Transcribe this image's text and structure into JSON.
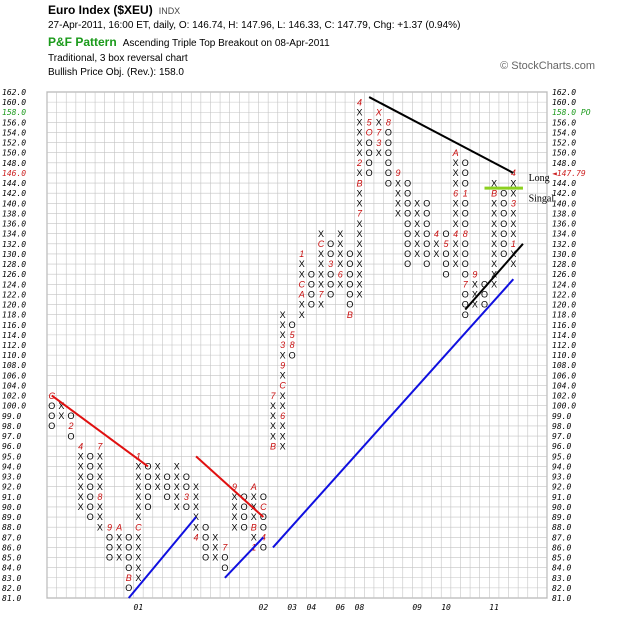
{
  "header": {
    "title": "Euro Index ($XEU)",
    "exchange": "INDX",
    "line1": "27-Apr-2011, 16:00 ET, daily, O: 146.74, H: 147.96, L: 146.33, C: 147.79, Chg: +1.37 (0.94%)",
    "pattern_label": "P&F Pattern",
    "pattern_text": "Ascending Triple Top Breakout on 08-Apr-2011",
    "line3": "Traditional, 3 box reversal chart",
    "line4": "Bullish Price Obj. (Rev.): 158.0",
    "watermark": "© StockCharts.com"
  },
  "chart_data": {
    "type": "point-and-figure",
    "box_size": 1,
    "reversal": 3,
    "ylim": [
      81,
      162
    ],
    "y_ticks": [
      81,
      82,
      83,
      84,
      85,
      86,
      87,
      88,
      89,
      90,
      91,
      92,
      93,
      94,
      95,
      96,
      97,
      98,
      99,
      100,
      102,
      104,
      106,
      108,
      110,
      112,
      114,
      116,
      118,
      120,
      122,
      124,
      126,
      128,
      130,
      132,
      134,
      136,
      138,
      140,
      142,
      144,
      146,
      148,
      150,
      152,
      154,
      156,
      158,
      160,
      162
    ],
    "y_tick_labels": [
      "81.0",
      "82.0",
      "83.0",
      "84.0",
      "85.0",
      "86.0",
      "87.0",
      "88.0",
      "89.0",
      "90.0",
      "91.0",
      "92.0",
      "93.0",
      "94.0",
      "95.0",
      "96.0",
      "97.0",
      "98.0",
      "99.0",
      "100.0",
      "102.0",
      "104.0",
      "106.0",
      "108.0",
      "110.0",
      "112.0",
      "114.0",
      "116.0",
      "118.0",
      "120.0",
      "122.0",
      "124.0",
      "126.0",
      "128.0",
      "130.0",
      "132.0",
      "134.0",
      "136.0",
      "138.0",
      "140.0",
      "142.0",
      "144.0",
      "146.0",
      "148.0",
      "150.0",
      "152.0",
      "154.0",
      "156.0",
      "158.0",
      "160.0",
      "162.0"
    ],
    "n_columns": 52,
    "x_labels": [
      {
        "column": 9,
        "text": "01"
      },
      {
        "column": 22,
        "text": "02"
      },
      {
        "column": 25,
        "text": "03"
      },
      {
        "column": 27,
        "text": "04"
      },
      {
        "column": 30,
        "text": "06"
      },
      {
        "column": 32,
        "text": "08"
      },
      {
        "column": 38,
        "text": "09"
      },
      {
        "column": 41,
        "text": "10"
      },
      {
        "column": 46,
        "text": "11"
      }
    ],
    "columns": [
      {
        "col": 0,
        "type": "O",
        "from": 102,
        "to": 98,
        "marks": {
          "106": "B",
          "102": "C"
        }
      },
      {
        "col": 1,
        "type": "X",
        "from": 99,
        "to": 100
      },
      {
        "col": 2,
        "type": "O",
        "from": 99,
        "to": 97,
        "marks": {
          "98": "2"
        }
      },
      {
        "col": 3,
        "type": "X",
        "from": 90,
        "to": 96,
        "marks": {
          "96": "4"
        }
      },
      {
        "col": 4,
        "type": "O",
        "from": 95,
        "to": 89,
        "marks": {
          "96": "6"
        }
      },
      {
        "col": 5,
        "type": "X",
        "from": 88,
        "to": 96,
        "marks": {
          "96": "7",
          "91": "8"
        }
      },
      {
        "col": 6,
        "type": "O",
        "from": 88,
        "to": 85,
        "marks": {
          "88": "9"
        }
      },
      {
        "col": 7,
        "type": "X",
        "from": 85,
        "to": 88,
        "marks": {
          "88": "A"
        }
      },
      {
        "col": 8,
        "type": "O",
        "from": 87,
        "to": 82,
        "marks": {
          "83": "B"
        }
      },
      {
        "col": 9,
        "type": "X",
        "from": 83,
        "to": 95,
        "marks": {
          "95": "1",
          "88": "C"
        }
      },
      {
        "col": 10,
        "type": "O",
        "from": 94,
        "to": 90
      },
      {
        "col": 11,
        "type": "X",
        "from": 92,
        "to": 94
      },
      {
        "col": 12,
        "type": "O",
        "from": 93,
        "to": 91
      },
      {
        "col": 13,
        "type": "X",
        "from": 90,
        "to": 94
      },
      {
        "col": 14,
        "type": "O",
        "from": 93,
        "to": 90,
        "marks": {
          "91": "3"
        }
      },
      {
        "col": 15,
        "type": "X",
        "from": 87,
        "to": 92,
        "marks": {
          "87": "4"
        }
      },
      {
        "col": 16,
        "type": "O",
        "from": 88,
        "to": 85,
        "marks": {
          "89": "5"
        }
      },
      {
        "col": 17,
        "type": "X",
        "from": 85,
        "to": 87,
        "marks": {
          "84": "6"
        }
      },
      {
        "col": 18,
        "type": "O",
        "from": 86,
        "to": 84,
        "marks": {
          "86": "7",
          "88": "8"
        }
      },
      {
        "col": 19,
        "type": "X",
        "from": 88,
        "to": 92,
        "marks": {
          "92": "9"
        }
      },
      {
        "col": 20,
        "type": "O",
        "from": 91,
        "to": 88
      },
      {
        "col": 21,
        "type": "X",
        "from": 86,
        "to": 92,
        "marks": {
          "92": "A",
          "88": "B",
          "86": "1"
        }
      },
      {
        "col": 22,
        "type": "O",
        "from": 91,
        "to": 86,
        "marks": {
          "90": "C",
          "87": "4"
        }
      },
      {
        "col": 23,
        "type": "X",
        "from": 96,
        "to": 102,
        "marks": {
          "102": "7",
          "96": "B"
        }
      },
      {
        "col": 24,
        "type": "X",
        "from": 96,
        "to": 118,
        "marks": {
          "112": "3",
          "108": "9",
          "104": "C",
          "99": "6"
        }
      },
      {
        "col": 25,
        "type": "O",
        "from": 117,
        "to": 110,
        "marks": {
          "114": "5",
          "112": "8"
        }
      },
      {
        "col": 26,
        "type": "X",
        "from": 118,
        "to": 130,
        "marks": {
          "130": "1",
          "124": "C",
          "122": "A"
        }
      },
      {
        "col": 27,
        "type": "O",
        "from": 127,
        "to": 120,
        "marks": {
          "127": "3",
          "121": "4"
        }
      },
      {
        "col": 28,
        "type": "X",
        "from": 120,
        "to": 134,
        "marks": {
          "132": "C",
          "129": "A",
          "122": "7"
        }
      },
      {
        "col": 29,
        "type": "O",
        "from": 132,
        "to": 122,
        "marks": {
          "131": "B",
          "128": "3"
        }
      },
      {
        "col": 30,
        "type": "X",
        "from": 124,
        "to": 134,
        "marks": {
          "131": "O",
          "126": "6",
          "123": "5"
        }
      },
      {
        "col": 31,
        "type": "O",
        "from": 130,
        "to": 118,
        "marks": {
          "118": "B"
        }
      },
      {
        "col": 32,
        "type": "X",
        "from": 122,
        "to": 160,
        "marks": {
          "160": "4",
          "148": "2",
          "144": "B",
          "141": "9",
          "138": "7"
        }
      },
      {
        "col": 33,
        "type": "O",
        "from": 157,
        "to": 145,
        "marks": {
          "156": "5",
          "154": "O"
        }
      },
      {
        "col": 34,
        "type": "X",
        "from": 150,
        "to": 158,
        "marks": {
          "158": "X",
          "154": "7",
          "152": "3"
        }
      },
      {
        "col": 35,
        "type": "O",
        "from": 157,
        "to": 144,
        "marks": {
          "156": "8",
          "153": "O"
        }
      },
      {
        "col": 36,
        "type": "X",
        "from": 138,
        "to": 146,
        "marks": {
          "146": "9"
        }
      },
      {
        "col": 37,
        "type": "O",
        "from": 145,
        "to": 127,
        "marks": {
          "141": "A",
          "137": "C"
        }
      },
      {
        "col": 38,
        "type": "X",
        "from": 130,
        "to": 141
      },
      {
        "col": 39,
        "type": "O",
        "from": 140,
        "to": 127,
        "marks": {
          "129": "3"
        }
      },
      {
        "col": 40,
        "type": "X",
        "from": 129,
        "to": 134,
        "marks": {
          "134": "4"
        }
      },
      {
        "col": 41,
        "type": "O",
        "from": 134,
        "to": 126,
        "marks": {
          "132": "5"
        }
      },
      {
        "col": 42,
        "type": "X",
        "from": 128,
        "to": 150,
        "marks": {
          "150": "A",
          "145": "8",
          "142": "6",
          "134": "4"
        }
      },
      {
        "col": 43,
        "type": "O",
        "from": 148,
        "to": 118,
        "marks": {
          "142": "1",
          "139": "2",
          "134": "8",
          "127": "C",
          "124": "7"
        }
      },
      {
        "col": 44,
        "type": "X",
        "from": 120,
        "to": 126,
        "marks": {
          "126": "9"
        }
      },
      {
        "col": 45,
        "type": "O",
        "from": 124,
        "to": 120
      },
      {
        "col": 46,
        "type": "X",
        "from": 124,
        "to": 144,
        "marks": {
          "142": "B"
        }
      },
      {
        "col": 47,
        "type": "O",
        "from": 143,
        "to": 130,
        "marks": {
          "141": "2"
        }
      },
      {
        "col": 48,
        "type": "X",
        "from": 128,
        "to": 146,
        "marks": {
          "146": "4",
          "140": "3",
          "132": "1"
        }
      }
    ],
    "trendlines": [
      {
        "kind": "bearish resistance",
        "color": "#e01010",
        "from": {
          "col": 0,
          "price": 102
        },
        "to": {
          "col": 10,
          "price": 94
        }
      },
      {
        "kind": "bearish resistance",
        "color": "#e01010",
        "from": {
          "col": 15,
          "price": 95
        },
        "to": {
          "col": 22,
          "price": 89
        }
      },
      {
        "kind": "bullish support",
        "color": "#1010e0",
        "from": {
          "col": 8,
          "price": 81
        },
        "to": {
          "col": 15,
          "price": 89
        }
      },
      {
        "kind": "bullish support",
        "color": "#1010e0",
        "from": {
          "col": 18,
          "price": 83
        },
        "to": {
          "col": 22,
          "price": 87
        }
      },
      {
        "kind": "bullish support",
        "color": "#1010e0",
        "from": {
          "col": 23,
          "price": 86
        },
        "to": {
          "col": 48,
          "price": 125
        }
      },
      {
        "kind": "resistance",
        "color": "#000000",
        "from": {
          "col": 33,
          "price": 161
        },
        "to": {
          "col": 48,
          "price": 146
        }
      },
      {
        "kind": "support",
        "color": "#000000",
        "from": {
          "col": 43,
          "price": 119
        },
        "to": {
          "col": 49,
          "price": 132
        }
      }
    ],
    "signal_line": {
      "color": "#8cd020",
      "price": 143,
      "from_col": 45,
      "to_col": 49
    },
    "annotations": [
      {
        "text": "Long",
        "col": 50,
        "price": 145
      },
      {
        "text": "Singal",
        "col": 50,
        "price": 141
      }
    ],
    "right_labels": {
      "price_objective": {
        "text": "158.0 PO",
        "price": 158,
        "color": "#1a9a1a"
      },
      "last_price": {
        "text": "147.79",
        "price": 146,
        "color": "#cc2020"
      }
    },
    "left_highlights": [
      {
        "text": "158.0",
        "price": 158,
        "color": "#1a9a1a"
      },
      {
        "text": "146.0",
        "price": 146,
        "color": "#cc2020"
      }
    ]
  }
}
